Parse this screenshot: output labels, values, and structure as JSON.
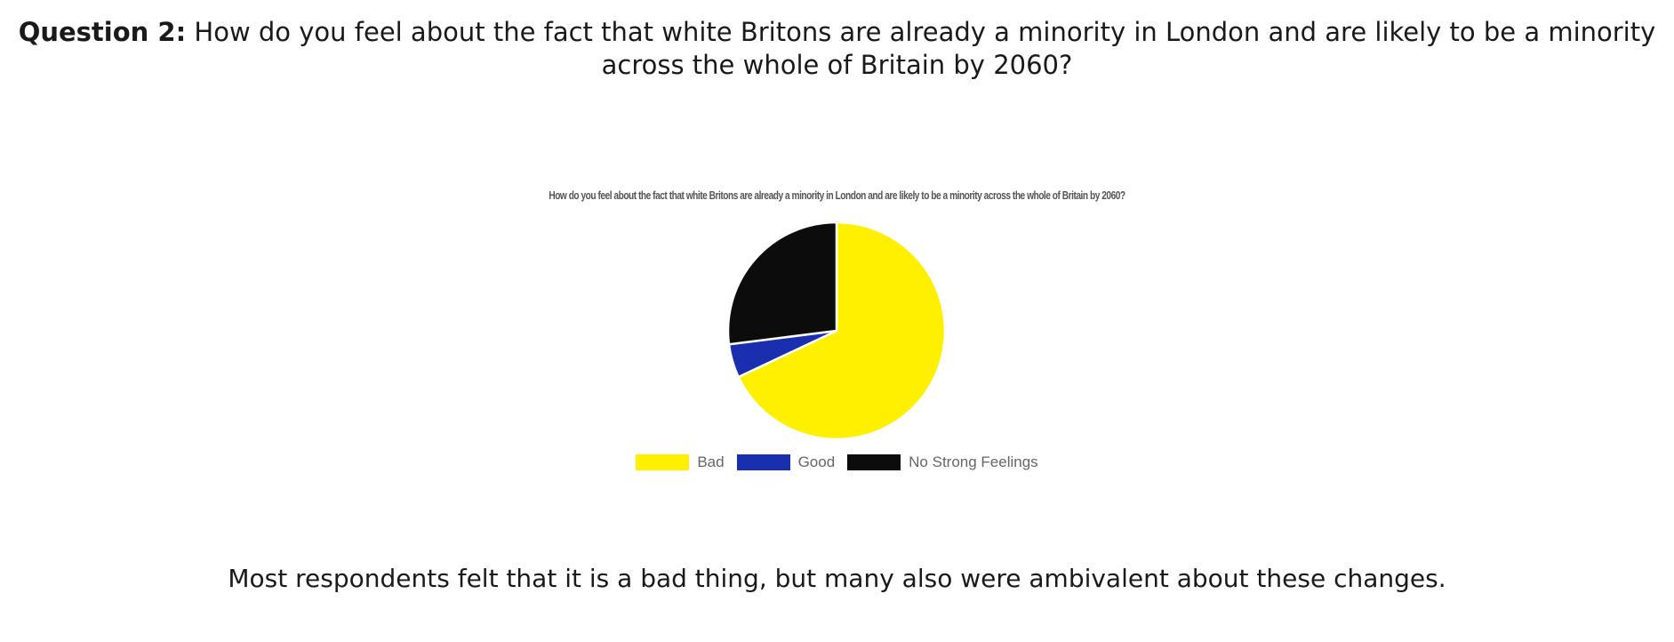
{
  "question": {
    "label": "Question 2:",
    "text": "How do you feel about the fact that white Britons are already a minority in London and are likely to be a minority across the whole of Britain by 2060?"
  },
  "conclusion": "Most respondents felt that it is a bad thing, but many also were ambivalent about these changes.",
  "chart_data": {
    "type": "pie",
    "title": "How do you feel about the fact that white Britons are already a minority in London and are likely to be a minority across the whole of Britain by 2060?",
    "categories": [
      "Bad",
      "Good",
      "No Strong Feelings"
    ],
    "values": [
      68,
      5,
      27
    ],
    "colors": [
      "#fff000",
      "#1a2eb0",
      "#0c0c0c"
    ],
    "legend_position": "bottom",
    "start_angle_deg": 0,
    "direction": "clockwise"
  }
}
